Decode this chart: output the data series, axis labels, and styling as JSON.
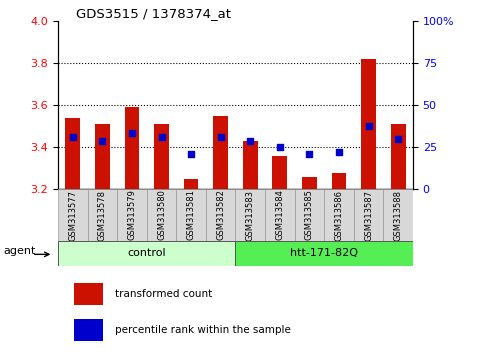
{
  "title": "GDS3515 / 1378374_at",
  "samples": [
    "GSM313577",
    "GSM313578",
    "GSM313579",
    "GSM313580",
    "GSM313581",
    "GSM313582",
    "GSM313583",
    "GSM313584",
    "GSM313585",
    "GSM313586",
    "GSM313587",
    "GSM313588"
  ],
  "red_values": [
    3.54,
    3.51,
    3.59,
    3.51,
    3.25,
    3.55,
    3.43,
    3.36,
    3.26,
    3.28,
    3.82,
    3.51
  ],
  "blue_values": [
    3.45,
    3.43,
    3.47,
    3.45,
    3.37,
    3.45,
    3.43,
    3.4,
    3.37,
    3.38,
    3.5,
    3.44
  ],
  "y_min": 3.2,
  "y_max": 4.0,
  "y_ticks_left": [
    3.2,
    3.4,
    3.6,
    3.8,
    4.0
  ],
  "y_ticks_right": [
    0,
    25,
    50,
    75,
    100
  ],
  "dotted_lines": [
    3.4,
    3.6,
    3.8
  ],
  "group1_label": "control",
  "group2_label": "htt-171-82Q",
  "group1_indices": [
    0,
    1,
    2,
    3,
    4,
    5
  ],
  "group2_indices": [
    6,
    7,
    8,
    9,
    10,
    11
  ],
  "agent_label": "agent",
  "legend_red": "transformed count",
  "legend_blue": "percentile rank within the sample",
  "bar_color": "#cc1100",
  "dot_color": "#0000cc",
  "group1_bg": "#ccffcc",
  "group2_bg": "#55ee55",
  "tick_label_bg": "#d8d8d8",
  "bar_width": 0.5
}
